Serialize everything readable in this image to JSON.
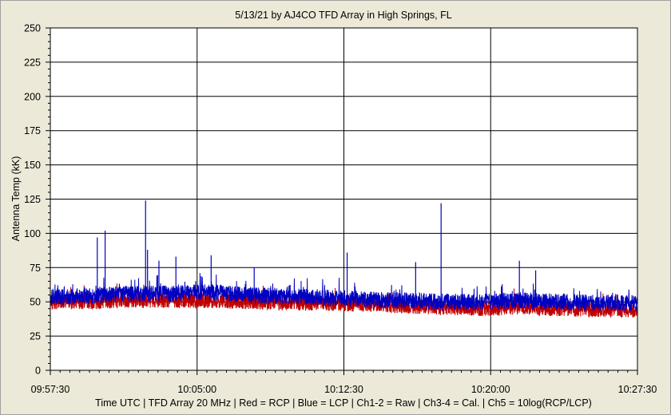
{
  "chart_data": {
    "type": "line",
    "title": "5/13/21  by  AJ4CO TFD Array  in  High Springs, FL",
    "xlabel": "Time UTC | TFD Array 20 MHz | Red = RCP | Blue = LCP | Ch1-2 = Raw | Ch3-4 = Cal. | Ch5 = 10log(RCP/LCP)",
    "ylabel": "Antenna Temp (kK)",
    "ylim": [
      0,
      250
    ],
    "yticks": [
      0,
      25,
      50,
      75,
      100,
      125,
      150,
      175,
      200,
      225,
      250
    ],
    "x_tick_labels": [
      "09:57:30",
      "10:05:00",
      "10:12:30",
      "10:20:00",
      "10:27:30"
    ],
    "xlim_seconds_of_day": [
      35850,
      37650
    ],
    "grid": true,
    "legend": "none",
    "colors": {
      "plot_background": "#FFFFFF",
      "frame_background": "#ECE9D8",
      "grid": "#000000",
      "rcp": "#C00000",
      "lcp": "#0000C0"
    },
    "series": [
      {
        "name": "RCP",
        "color": "#C00000",
        "x_seconds_of_day": [
          35850,
          35970,
          36090,
          36210,
          36330,
          36450,
          36570,
          36690,
          36810,
          36930,
          37050,
          37170,
          37290,
          37410,
          37530,
          37650
        ],
        "values": [
          50,
          50,
          51,
          51,
          51,
          50,
          49,
          49,
          48,
          47,
          46,
          45,
          46,
          45,
          44,
          44
        ]
      },
      {
        "name": "LCP",
        "color": "#0000C0",
        "x_seconds_of_day": [
          35850,
          35970,
          36090,
          36210,
          36330,
          36450,
          36570,
          36690,
          36810,
          36930,
          37050,
          37170,
          37290,
          37410,
          37530,
          37650
        ],
        "values": [
          53,
          54,
          56,
          56,
          57,
          55,
          54,
          53,
          52,
          51,
          50,
          50,
          51,
          50,
          49,
          49
        ]
      },
      {
        "name": "LCP spikes",
        "color": "#0000C0",
        "x_seconds_of_day": [
          35994,
          36018,
          36142,
          36148,
          36183,
          36235,
          36343,
          36475,
          36760,
          36970,
          37048,
          37288,
          37338
        ],
        "values": [
          97,
          102,
          124,
          88,
          80,
          83,
          84,
          75,
          86,
          79,
          122,
          80,
          73
        ]
      }
    ]
  }
}
